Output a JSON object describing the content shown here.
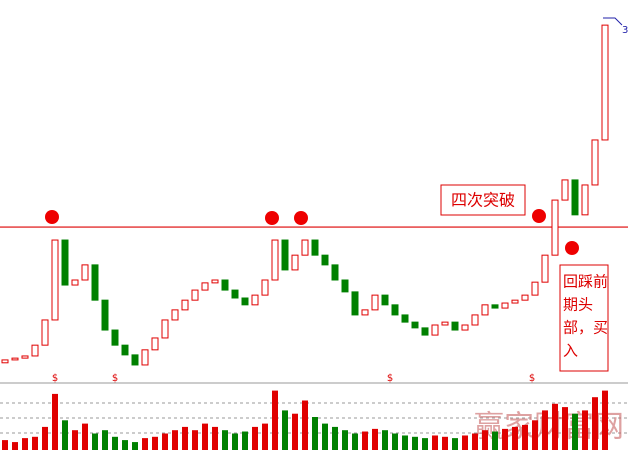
{
  "chart_data": {
    "type": "candlestick",
    "ylim": [
      0,
      100
    ],
    "resistance": 39.7,
    "up_color": "#e00000",
    "down_color": "#008000",
    "open": [
      2.0,
      2.8,
      3.3,
      3.9,
      6.9,
      13.9,
      36.1,
      23.6,
      25,
      29.2,
      19.4,
      11.1,
      6.9,
      4.2,
      1.4,
      5.6,
      8.9,
      13.9,
      16.7,
      19.4,
      22.2,
      24.2,
      25,
      22.2,
      20,
      18.1,
      20.8,
      25,
      36.1,
      27.8,
      31.9,
      36.1,
      31.9,
      29.2,
      25,
      21.7,
      15.3,
      16.7,
      20.8,
      18.1,
      15.3,
      13.3,
      11.7,
      9.7,
      12.5,
      13.3,
      11.1,
      12.5,
      15.3,
      18.1,
      17.2,
      18.6,
      19.4,
      20.8,
      24.4,
      31.9,
      47.2,
      52.8,
      43.1,
      51.4,
      63.9
    ],
    "close": [
      2.8,
      3.3,
      3.9,
      6.9,
      13.9,
      36.1,
      23.6,
      25,
      29.2,
      19.4,
      11.1,
      6.9,
      4.2,
      1.4,
      5.6,
      8.9,
      13.9,
      16.7,
      19.4,
      22.2,
      24.2,
      25,
      22.2,
      20,
      18.1,
      20.8,
      25,
      36.1,
      27.8,
      31.9,
      36.1,
      31.9,
      29.2,
      25,
      21.7,
      15.3,
      16.7,
      20.8,
      18.1,
      15.3,
      13.3,
      11.7,
      9.7,
      12.5,
      13.3,
      11.1,
      12.5,
      15.3,
      18.1,
      17.2,
      18.6,
      19.4,
      20.8,
      24.4,
      31.9,
      47.2,
      52.8,
      43.1,
      51.4,
      63.9,
      95.8
    ],
    "volume_ylim": [
      0,
      100
    ],
    "volume": [
      15,
      12,
      18,
      20,
      35,
      85,
      45,
      30,
      40,
      25,
      30,
      20,
      15,
      12,
      18,
      20,
      25,
      30,
      35,
      30,
      40,
      35,
      30,
      25,
      28,
      35,
      40,
      90,
      60,
      55,
      75,
      50,
      40,
      35,
      30,
      25,
      28,
      32,
      30,
      25,
      22,
      20,
      18,
      22,
      20,
      18,
      22,
      25,
      30,
      28,
      32,
      35,
      38,
      45,
      60,
      70,
      65,
      55,
      60,
      80,
      90
    ],
    "price_label": "3",
    "markers": [
      "$",
      "$",
      "$",
      "$"
    ],
    "annotations": {
      "breakout": "四次突破",
      "retest": [
        "回踩前",
        "期头",
        "部，买",
        "入"
      ]
    },
    "watermark": "赢家财富网"
  }
}
